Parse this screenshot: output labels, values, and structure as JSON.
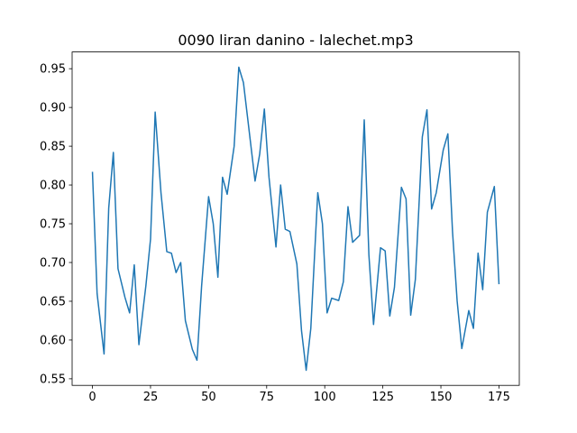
{
  "chart_data": {
    "type": "line",
    "title": "0090 liran danino - lalechet.mp3",
    "x": [
      0,
      2,
      5,
      7,
      9,
      11,
      14,
      16,
      18,
      20,
      23,
      25,
      27,
      29.5,
      32,
      34,
      36,
      38,
      40,
      43,
      45,
      47,
      50,
      52,
      54,
      56,
      58,
      61,
      63,
      65,
      68,
      70,
      72,
      74,
      76,
      79,
      81,
      83,
      85,
      88,
      90,
      92,
      94,
      97,
      99,
      101,
      103,
      106,
      108,
      110,
      112,
      115,
      117,
      119,
      121,
      124,
      126,
      128,
      130,
      133,
      135,
      137,
      139,
      142,
      144,
      146,
      148,
      151,
      153,
      155,
      157,
      159,
      162,
      164,
      166,
      168,
      170,
      173,
      175
    ],
    "series": [
      {
        "color": "#1f77b4",
        "values": [
          0.817,
          0.66,
          0.582,
          0.77,
          0.842,
          0.692,
          0.655,
          0.635,
          0.697,
          0.594,
          0.67,
          0.73,
          0.894,
          0.79,
          0.714,
          0.712,
          0.687,
          0.7,
          0.625,
          0.588,
          0.574,
          0.67,
          0.785,
          0.75,
          0.681,
          0.81,
          0.788,
          0.85,
          0.952,
          0.932,
          0.856,
          0.805,
          0.84,
          0.898,
          0.81,
          0.72,
          0.8,
          0.743,
          0.74,
          0.698,
          0.612,
          0.561,
          0.615,
          0.79,
          0.75,
          0.635,
          0.654,
          0.651,
          0.675,
          0.772,
          0.726,
          0.735,
          0.884,
          0.71,
          0.62,
          0.719,
          0.715,
          0.631,
          0.668,
          0.797,
          0.782,
          0.632,
          0.678,
          0.862,
          0.897,
          0.769,
          0.79,
          0.845,
          0.866,
          0.74,
          0.65,
          0.589,
          0.638,
          0.615,
          0.712,
          0.665,
          0.765,
          0.798,
          0.672
        ]
      }
    ],
    "xlim": [
      -8.75,
      183.75
    ],
    "xticks": [
      0,
      25,
      50,
      75,
      100,
      125,
      150,
      175
    ],
    "ylim": [
      0.5415,
      0.9716
    ],
    "yticks": [
      0.55,
      {
        "value": 0.6,
        "label": "0.60"
      },
      0.65,
      {
        "value": 0.7,
        "label": "0.70"
      },
      0.75,
      {
        "value": 0.8,
        "label": "0.80"
      },
      0.85,
      {
        "value": 0.9,
        "label": "0.90"
      },
      0.95
    ],
    "grid": false
  }
}
